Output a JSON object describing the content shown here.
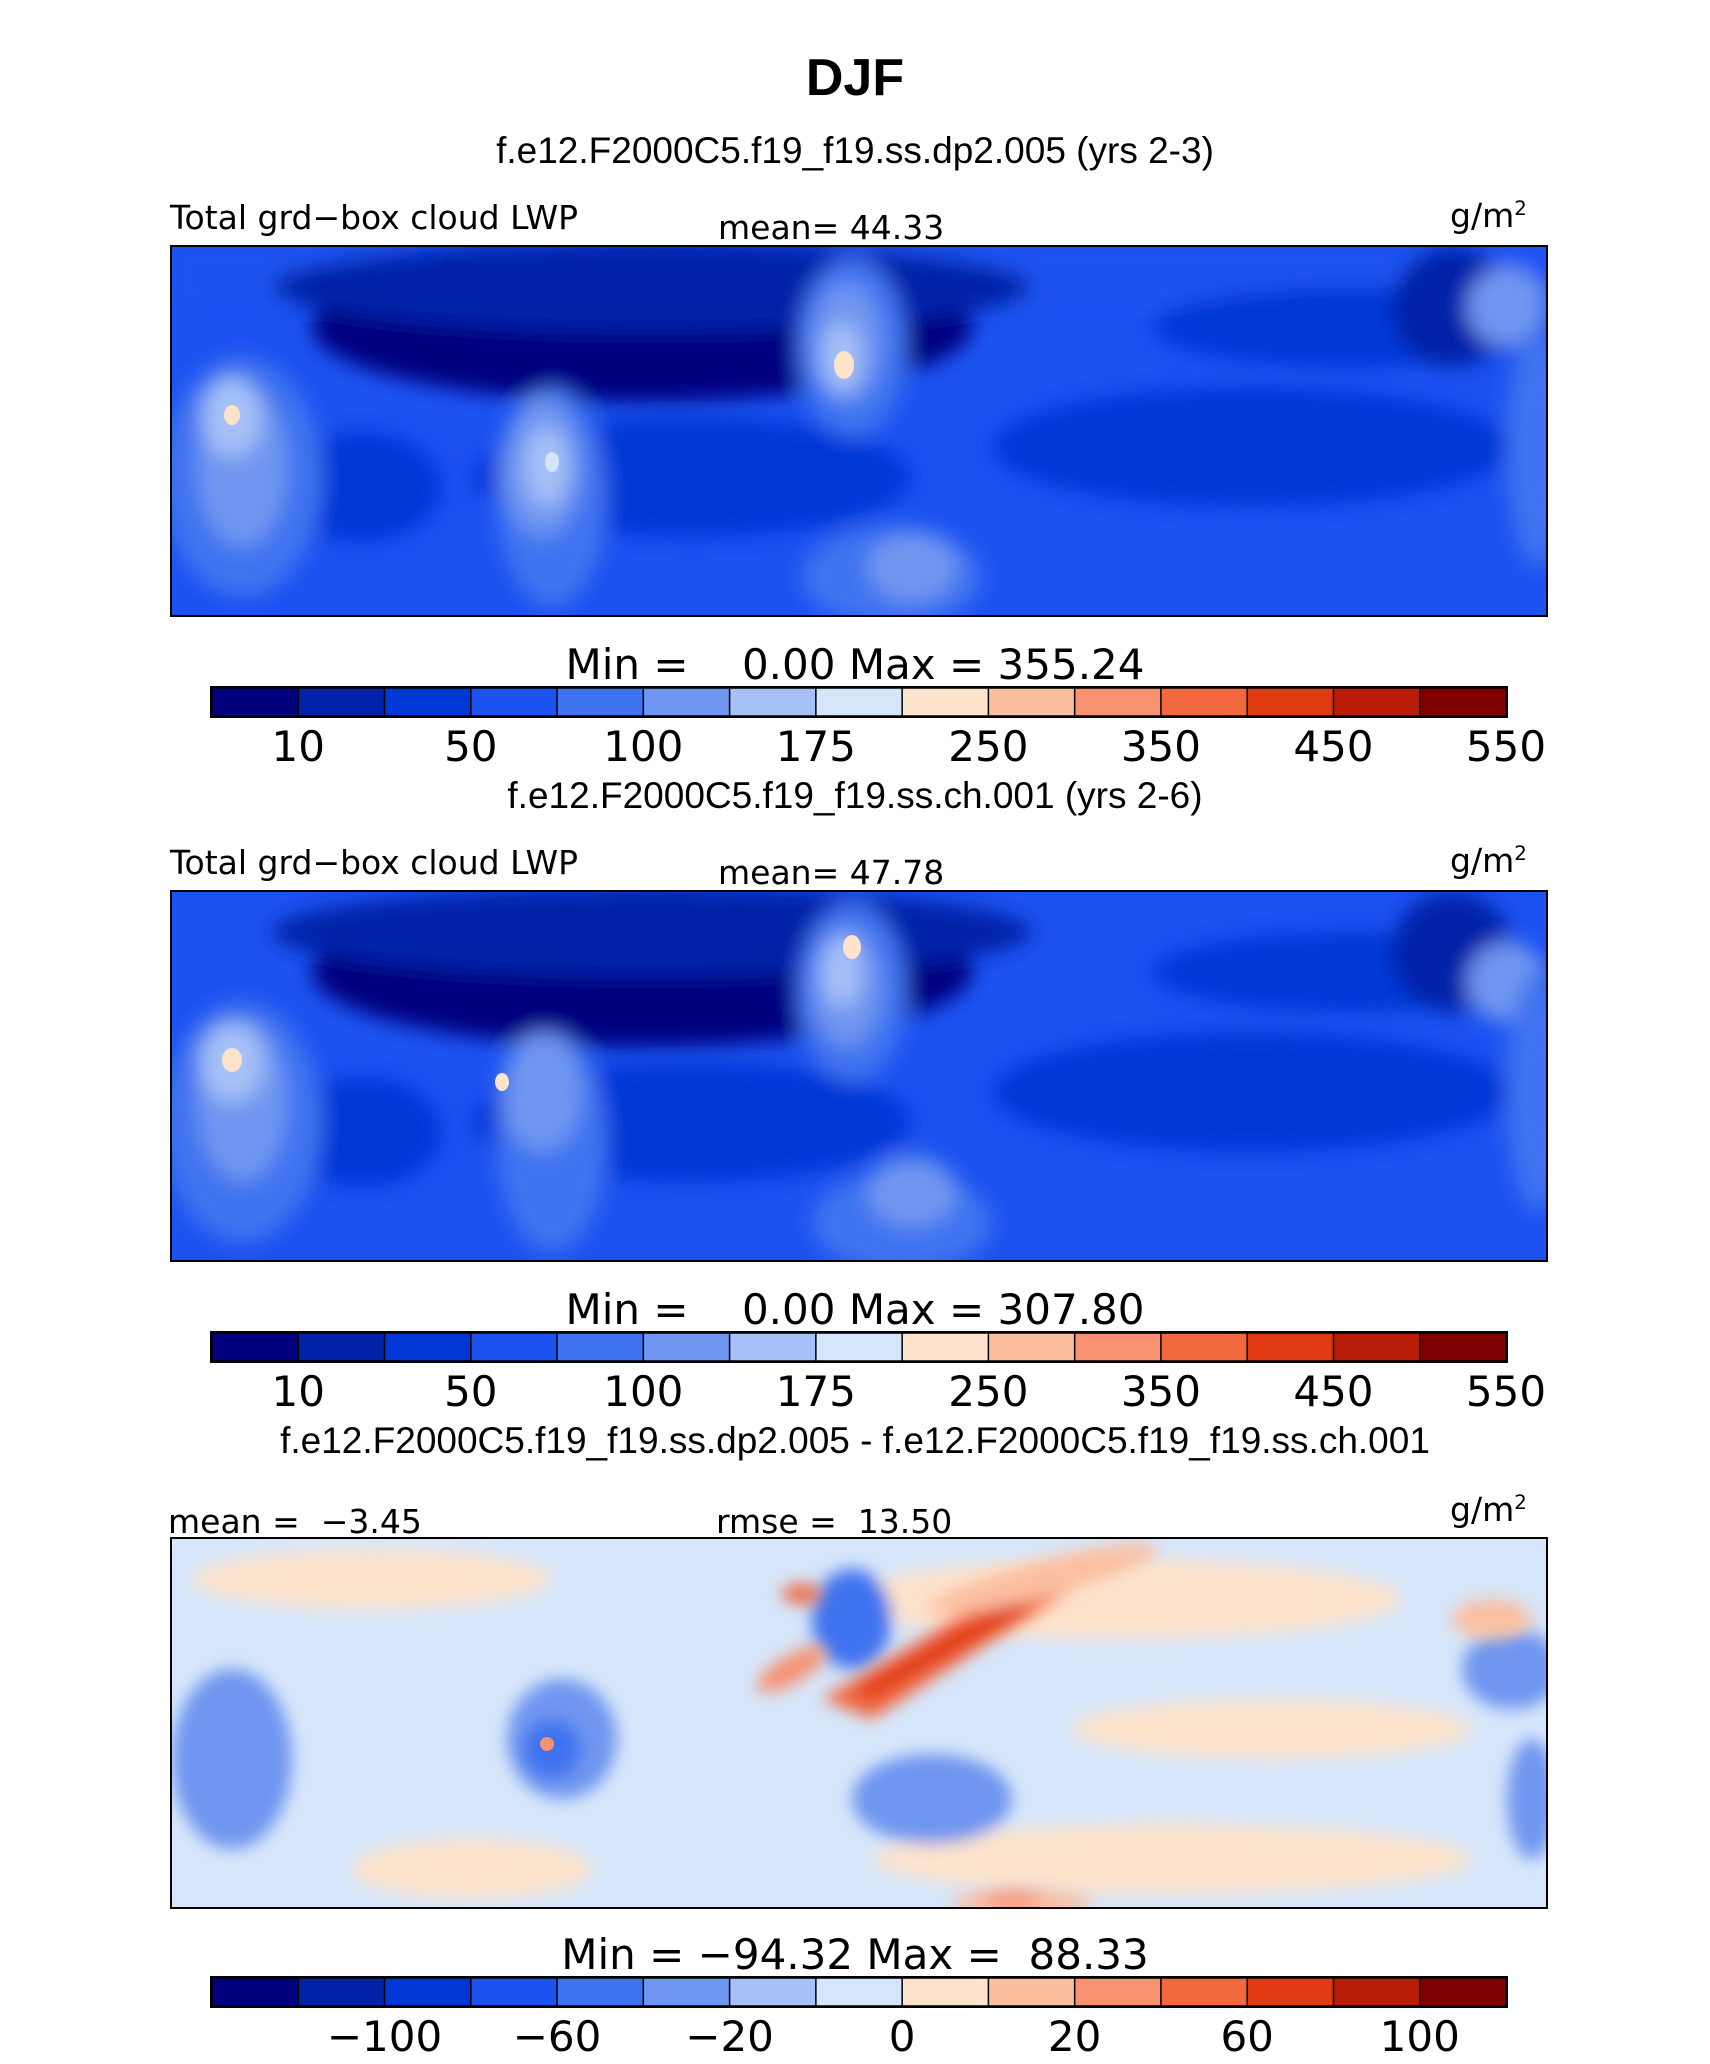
{
  "title": "DJF",
  "panels": [
    {
      "subtitle": "f.e12.F2000C5.f19_f19.ss.dp2.005 (yrs 2-3)",
      "left_label": "Total grd−box cloud LWP",
      "center_label": "mean=  44.33",
      "units": "g/m",
      "units_sup": "2",
      "stats": "Min =    0.00 Max = 355.24",
      "colorbar_ticks": [
        "10",
        "50",
        "100",
        "175",
        "250",
        "350",
        "450",
        "550"
      ]
    },
    {
      "subtitle": "f.e12.F2000C5.f19_f19.ss.ch.001 (yrs 2-6)",
      "left_label": "Total grd−box cloud LWP",
      "center_label": "mean=  47.78",
      "units": "g/m",
      "units_sup": "2",
      "stats": "Min =    0.00 Max = 307.80",
      "colorbar_ticks": [
        "10",
        "50",
        "100",
        "175",
        "250",
        "350",
        "450",
        "550"
      ]
    },
    {
      "subtitle": "f.e12.F2000C5.f19_f19.ss.dp2.005 - f.e12.F2000C5.f19_f19.ss.ch.001",
      "left_label": "mean =  −3.45",
      "center_label": "rmse =  13.50",
      "units": "g/m",
      "units_sup": "2",
      "stats": "Min = −94.32 Max =  88.33",
      "colorbar_ticks": [
        "−100",
        "−60",
        "−20",
        "0",
        "20",
        "60",
        "100"
      ]
    }
  ],
  "colorbar_colors": [
    "#00007f",
    "#0022a8",
    "#0038d6",
    "#1c52f0",
    "#4073f0",
    "#6f96f0",
    "#a6c1f7",
    "#d6e6fa",
    "#fde3cc",
    "#fbbfa0",
    "#f79271",
    "#f2683f",
    "#e03a13",
    "#b81d08",
    "#7f0000"
  ],
  "chart_data": [
    {
      "type": "heatmap",
      "title": "f.e12.F2000C5.f19_f19.ss.dp2.005 (yrs 2-3)",
      "variable": "Total grd−box cloud LWP",
      "units": "g/m2",
      "mean": 44.33,
      "min": 0.0,
      "max": 355.24,
      "contour_levels": [
        10,
        25,
        50,
        75,
        100,
        125,
        150,
        175,
        200,
        250,
        300,
        350,
        400,
        450,
        500,
        550
      ],
      "labeled_levels": [
        10,
        50,
        100,
        175,
        250,
        350,
        450,
        550
      ]
    },
    {
      "type": "heatmap",
      "title": "f.e12.F2000C5.f19_f19.ss.ch.001 (yrs 2-6)",
      "variable": "Total grd−box cloud LWP",
      "units": "g/m2",
      "mean": 47.78,
      "min": 0.0,
      "max": 307.8,
      "contour_levels": [
        10,
        25,
        50,
        75,
        100,
        125,
        150,
        175,
        200,
        250,
        300,
        350,
        400,
        450,
        500,
        550
      ],
      "labeled_levels": [
        10,
        50,
        100,
        175,
        250,
        350,
        450,
        550
      ]
    },
    {
      "type": "heatmap",
      "title": "f.e12.F2000C5.f19_f19.ss.dp2.005 - f.e12.F2000C5.f19_f19.ss.ch.001",
      "units": "g/m2",
      "mean": -3.45,
      "rmse": 13.5,
      "min": -94.32,
      "max": 88.33,
      "labeled_levels": [
        -100,
        -60,
        -20,
        0,
        20,
        60,
        100
      ]
    }
  ]
}
